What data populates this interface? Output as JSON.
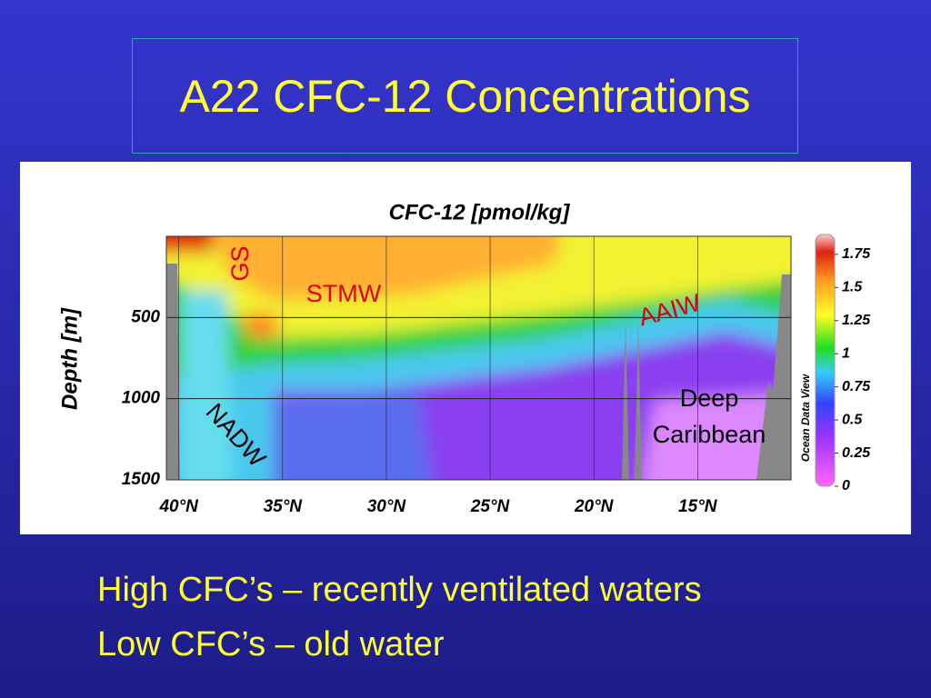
{
  "slide": {
    "title": "A22 CFC-12 Concentrations",
    "bullets": [
      "High CFC’s – recently ventilated waters",
      "Low CFC’s – old water"
    ]
  },
  "chart_data": {
    "type": "section",
    "title": "CFC-12 [pmol/kg]",
    "ylabel": "Depth [m]",
    "xlim": [
      40.6,
      10.5
    ],
    "xticks": [
      {
        "value": 40,
        "label": "40°N"
      },
      {
        "value": 35,
        "label": "35°N"
      },
      {
        "value": 30,
        "label": "30°N"
      },
      {
        "value": 25,
        "label": "25°N"
      },
      {
        "value": 20,
        "label": "20°N"
      },
      {
        "value": 15,
        "label": "15°N"
      }
    ],
    "ylim": [
      0,
      1500
    ],
    "yticks": [
      500,
      1000,
      1500
    ],
    "grid": true,
    "colorbar": {
      "lim": [
        0,
        1.9
      ],
      "ticks": [
        1.75,
        1.5,
        1.25,
        1,
        0.75,
        0.5,
        0.25,
        0
      ]
    },
    "annotations": [
      "GS",
      "STMW",
      "AAIW",
      "NADW",
      "Deep",
      "Caribbean"
    ],
    "watermark": "Ocean Data View"
  }
}
